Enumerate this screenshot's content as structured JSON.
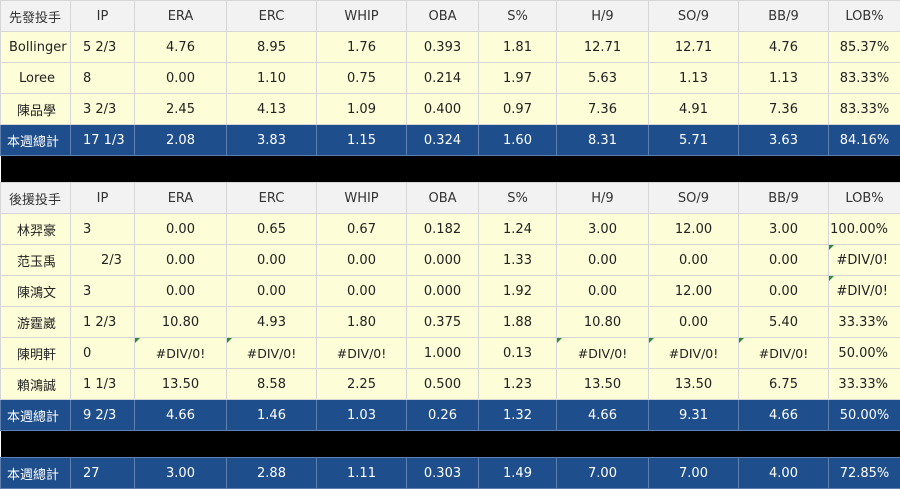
{
  "header_columns": [
    "IP",
    "ERA",
    "ERC",
    "WHIP",
    "OBA",
    "S%",
    "H/9",
    "SO/9",
    "BB/9",
    "LOB%"
  ],
  "starters": {
    "title": "先發投手",
    "rows": [
      {
        "name": "Bollinger",
        "IP": "5 2/3",
        "ERA": "4.76",
        "ERC": "8.95",
        "WHIP": "1.76",
        "OBA": "0.393",
        "S": "1.81",
        "H9": "12.71",
        "SO9": "12.71",
        "BB9": "4.76",
        "LOB": "85.37%"
      },
      {
        "name": "Loree",
        "IP": "8",
        "ERA": "0.00",
        "ERC": "1.10",
        "WHIP": "0.75",
        "OBA": "0.214",
        "S": "1.97",
        "H9": "5.63",
        "SO9": "1.13",
        "BB9": "1.13",
        "LOB": "83.33%"
      },
      {
        "name": "陳品學",
        "IP": "3 2/3",
        "ERA": "2.45",
        "ERC": "4.13",
        "WHIP": "1.09",
        "OBA": "0.400",
        "S": "0.97",
        "H9": "7.36",
        "SO9": "4.91",
        "BB9": "7.36",
        "LOB": "83.33%"
      }
    ],
    "total": {
      "name": "本週總計",
      "IP": "17 1/3",
      "ERA": "2.08",
      "ERC": "3.83",
      "WHIP": "1.15",
      "OBA": "0.324",
      "S": "1.60",
      "H9": "8.31",
      "SO9": "5.71",
      "BB9": "3.63",
      "LOB": "84.16%"
    }
  },
  "relievers": {
    "title": "後援投手",
    "rows": [
      {
        "name": "林羿豪",
        "IP": "3",
        "ERA": "0.00",
        "ERC": "0.65",
        "WHIP": "0.67",
        "OBA": "0.182",
        "S": "1.24",
        "H9": "3.00",
        "SO9": "12.00",
        "BB9": "3.00",
        "LOB": "100.00%"
      },
      {
        "name": "范玉禹",
        "IP": "2/3",
        "ERA": "0.00",
        "ERC": "0.00",
        "WHIP": "0.00",
        "OBA": "0.000",
        "S": "1.33",
        "H9": "0.00",
        "SO9": "0.00",
        "BB9": "0.00",
        "LOB": "#DIV/0!"
      },
      {
        "name": "陳鴻文",
        "IP": "3",
        "ERA": "0.00",
        "ERC": "0.00",
        "WHIP": "0.00",
        "OBA": "0.000",
        "S": "1.92",
        "H9": "0.00",
        "SO9": "12.00",
        "BB9": "0.00",
        "LOB": "#DIV/0!"
      },
      {
        "name": "游霆崴",
        "IP": "1 2/3",
        "ERA": "10.80",
        "ERC": "4.93",
        "WHIP": "1.80",
        "OBA": "0.375",
        "S": "1.88",
        "H9": "10.80",
        "SO9": "0.00",
        "BB9": "5.40",
        "LOB": "33.33%"
      },
      {
        "name": "陳明軒",
        "IP": "0",
        "ERA": "#DIV/0!",
        "ERC": "#DIV/0!",
        "WHIP": "#DIV/0!",
        "OBA": "1.000",
        "S": "0.13",
        "H9": "#DIV/0!",
        "SO9": "#DIV/0!",
        "BB9": "#DIV/0!",
        "LOB": "50.00%"
      },
      {
        "name": "賴鴻誠",
        "IP": "1 1/3",
        "ERA": "13.50",
        "ERC": "8.58",
        "WHIP": "2.25",
        "OBA": "0.500",
        "S": "1.23",
        "H9": "13.50",
        "SO9": "13.50",
        "BB9": "6.75",
        "LOB": "33.33%"
      }
    ],
    "total": {
      "name": "本週總計",
      "IP": "9 2/3",
      "ERA": "4.66",
      "ERC": "1.46",
      "WHIP": "1.03",
      "OBA": "0.26",
      "S": "1.32",
      "H9": "4.66",
      "SO9": "9.31",
      "BB9": "4.66",
      "LOB": "50.00%"
    }
  },
  "grand_total": {
    "name": "本週總計",
    "IP": "27",
    "ERA": "3.00",
    "ERC": "2.88",
    "WHIP": "1.11",
    "OBA": "0.303",
    "S": "1.49",
    "H9": "7.00",
    "SO9": "7.00",
    "BB9": "4.00",
    "LOB": "72.85%"
  }
}
